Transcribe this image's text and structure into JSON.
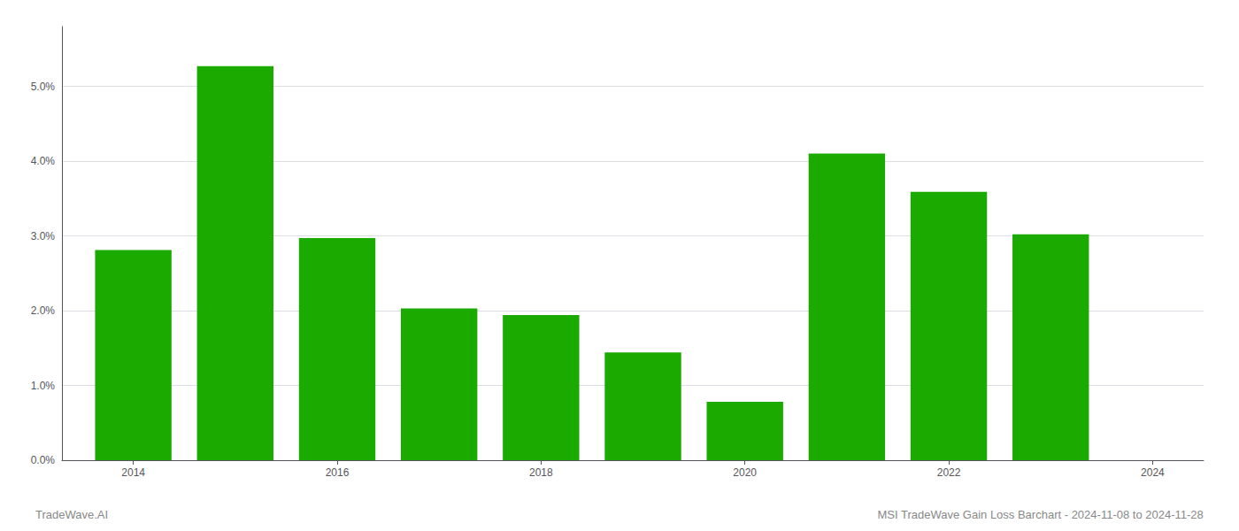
{
  "chart_data": {
    "type": "bar",
    "x": [
      2014,
      2015,
      2016,
      2017,
      2018,
      2019,
      2020,
      2021,
      2022,
      2023
    ],
    "values": [
      0.0281,
      0.0527,
      0.0297,
      0.0203,
      0.0194,
      0.0144,
      0.0078,
      0.041,
      0.0359,
      0.0302
    ],
    "color": "#1aaa00",
    "xlim": [
      2013.3,
      2024.5
    ],
    "xticks": [
      2014,
      2016,
      2018,
      2020,
      2022,
      2024
    ],
    "ylim": [
      0,
      0.058
    ],
    "yticks": [
      {
        "value": 0.0,
        "label": "0.0%"
      },
      {
        "value": 0.01,
        "label": "1.0%"
      },
      {
        "value": 0.02,
        "label": "2.0%"
      },
      {
        "value": 0.03,
        "label": "3.0%"
      },
      {
        "value": 0.04,
        "label": "4.0%"
      },
      {
        "value": 0.05,
        "label": "5.0%"
      }
    ],
    "grid": true,
    "annotations": [
      "TradeWave.AI",
      "MSI TradeWave Gain Loss Barchart - 2024-11-08 to 2024-11-28"
    ]
  }
}
